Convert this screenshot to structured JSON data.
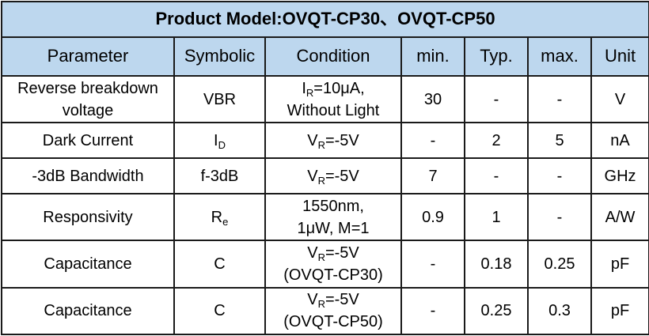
{
  "title": "Product Model:OVQT-CP30、OVQT-CP50",
  "headers": [
    "Parameter",
    "Symbolic",
    "Condition",
    "min.",
    "Typ.",
    "max.",
    "Unit"
  ],
  "rows": [
    {
      "parameter_line1": "Reverse breakdown",
      "parameter_line2": "voltage",
      "symbol": "VBR",
      "symbol_main": "",
      "symbol_sub": "",
      "condition_line1_main": "I",
      "condition_line1_sub": "R",
      "condition_line1_rest": "=10μA,",
      "condition_line2": "Without Light",
      "min": "30",
      "typ": "-",
      "max": "-",
      "unit": "V"
    },
    {
      "parameter_line1": "Dark Current",
      "symbol_main": "I",
      "symbol_sub": "D",
      "condition_line1_main": "V",
      "condition_line1_sub": "R",
      "condition_line1_rest": "=-5V",
      "min": "-",
      "typ": "2",
      "max": "5",
      "unit": "nA"
    },
    {
      "parameter_line1": "-3dB Bandwidth",
      "symbol": "f-3dB",
      "condition_line1_main": "V",
      "condition_line1_sub": "R",
      "condition_line1_rest": "=-5V",
      "min": "7",
      "typ": "-",
      "max": "-",
      "unit": "GHz"
    },
    {
      "parameter_line1": "Responsivity",
      "symbol_main": "R",
      "symbol_sub": "e",
      "condition_line1": "1550nm,",
      "condition_line2": "1μW, M=1",
      "min": "0.9",
      "typ": "1",
      "max": "-",
      "unit": "A/W"
    },
    {
      "parameter_line1": "Capacitance",
      "symbol": "C",
      "condition_line1_main": "V",
      "condition_line1_sub": "R",
      "condition_line1_rest": "=-5V",
      "condition_line2": "(OVQT-CP30)",
      "min": "-",
      "typ": "0.18",
      "max": "0.25",
      "unit": "pF"
    },
    {
      "parameter_line1": "Capacitance",
      "symbol": "C",
      "condition_line1_main": "V",
      "condition_line1_sub": "R",
      "condition_line1_rest": "=-5V",
      "condition_line2": "(OVQT-CP50)",
      "min": "-",
      "typ": "0.25",
      "max": "0.3",
      "unit": "pF"
    }
  ]
}
